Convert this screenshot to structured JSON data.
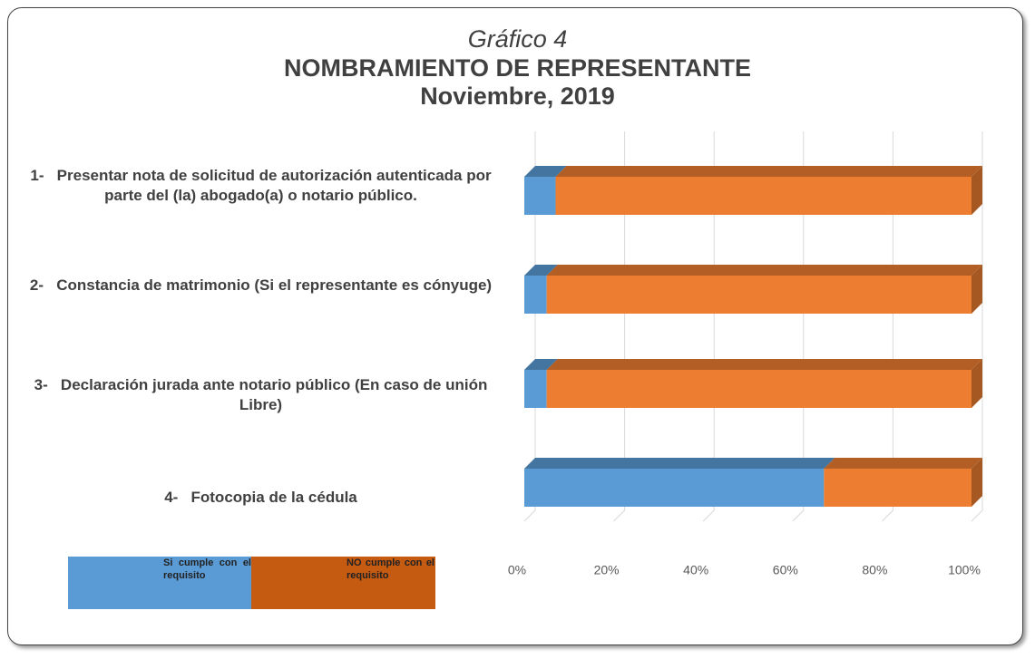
{
  "chart_data": {
    "type": "stacked-bar-3d",
    "title_lines": [
      "Gráfico 4",
      "NOMBRAMIENTO DE REPRESENTANTE",
      "Noviembre, 2019"
    ],
    "categories": [
      "1-   Presentar nota de solicitud de autorización autenticada por parte del (la) abogado(a) o notario público.",
      "2-   Constancia de matrimonio (Si el representante es cónyuge)",
      "3-   Declaración jurada ante notario público (En caso de unión Libre)",
      "4-   Fotocopia de la cédula"
    ],
    "series": [
      {
        "name": "Si cumple con el requisito",
        "color": "#5b9bd5",
        "legend_color": "#5b9bd5",
        "values": [
          7,
          5,
          5,
          67
        ]
      },
      {
        "name": "NO cumple con el requisito",
        "color": "#ed7d31",
        "legend_color": "#c55a11",
        "values": [
          93,
          95,
          95,
          33
        ]
      }
    ],
    "xlim": [
      0,
      100
    ],
    "xticks": [
      {
        "value": 0,
        "label": "0%"
      },
      {
        "value": 20,
        "label": "20%"
      },
      {
        "value": 40,
        "label": "40%"
      },
      {
        "value": 60,
        "label": "60%"
      },
      {
        "value": 80,
        "label": "80%"
      },
      {
        "value": 100,
        "label": "100%"
      }
    ],
    "grid": true
  }
}
